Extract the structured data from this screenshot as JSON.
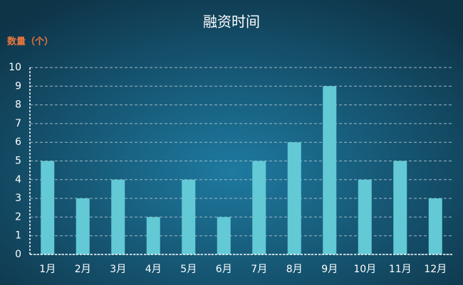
{
  "chart_data": {
    "type": "bar",
    "title": "融资时间",
    "y_label": "数量（个）",
    "categories": [
      "1月",
      "2月",
      "3月",
      "4月",
      "5月",
      "6月",
      "7月",
      "8月",
      "9月",
      "10月",
      "11月",
      "12月"
    ],
    "values": [
      5,
      3,
      4,
      2,
      4,
      2,
      5,
      6,
      9,
      4,
      5,
      3
    ],
    "color": "#62c9d5",
    "ylim": [
      0,
      10
    ],
    "yticks": [
      0,
      1,
      2,
      3,
      4,
      5,
      6,
      7,
      8,
      9,
      10
    ],
    "grid": true
  }
}
